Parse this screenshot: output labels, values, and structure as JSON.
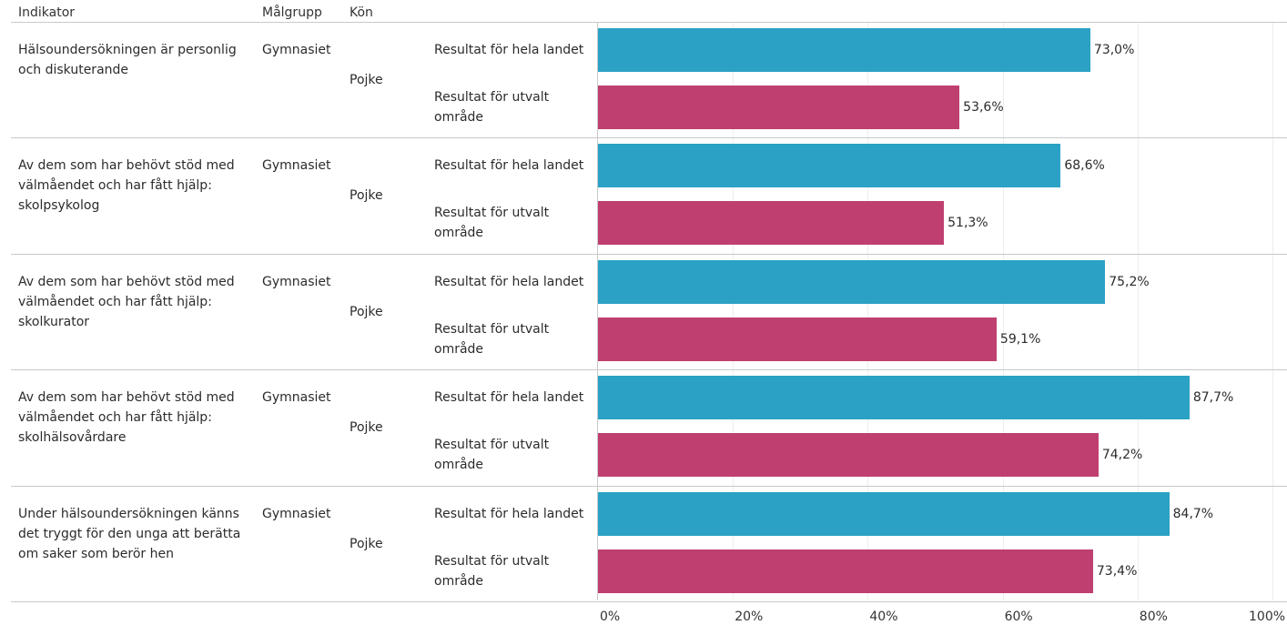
{
  "headers": {
    "indicator": "Indikator",
    "target_group": "Målgrupp",
    "gender": "Kön"
  },
  "chart_data": {
    "type": "bar",
    "orientation": "horizontal",
    "series": [
      {
        "name": "Resultat för hela landet",
        "color": "#2ba1c5"
      },
      {
        "name": "Resultat för utvalt område",
        "color": "#bf3f70"
      }
    ],
    "groups": [
      {
        "indicator": "Hälsoundersökningen är personlig och diskuterande",
        "target_group": "Gymnasiet",
        "gender": "Pojke",
        "values": [
          73.0,
          53.6
        ],
        "labels": [
          "73,0%",
          "53,6%"
        ]
      },
      {
        "indicator": "Av dem som har behövt stöd med välmåendet och har fått hjälp: skolpsykolog",
        "target_group": "Gymnasiet",
        "gender": "Pojke",
        "values": [
          68.6,
          51.3
        ],
        "labels": [
          "68,6%",
          "51,3%"
        ]
      },
      {
        "indicator": "Av dem som har behövt stöd med välmåendet och har fått hjälp: skolkurator",
        "target_group": "Gymnasiet",
        "gender": "Pojke",
        "values": [
          75.2,
          59.1
        ],
        "labels": [
          "75,2%",
          "59,1%"
        ]
      },
      {
        "indicator": "Av dem som har behövt stöd med välmåendet och har fått hjälp: skolhälsovårdare",
        "target_group": "Gymnasiet",
        "gender": "Pojke",
        "values": [
          87.7,
          74.2
        ],
        "labels": [
          "87,7%",
          "74,2%"
        ]
      },
      {
        "indicator": "Under hälsoundersökningen känns det tryggt för den unga att berätta om saker som berör hen",
        "target_group": "Gymnasiet",
        "gender": "Pojke",
        "values": [
          84.7,
          73.4
        ],
        "labels": [
          "84,7%",
          "73,4%"
        ]
      }
    ],
    "x_ticks": [
      "0%",
      "20%",
      "40%",
      "60%",
      "80%",
      "100%"
    ],
    "xlim": [
      0,
      100
    ],
    "grid": true
  }
}
